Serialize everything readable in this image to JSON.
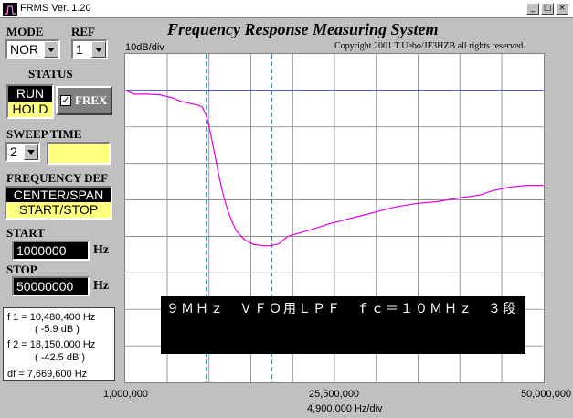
{
  "window": {
    "title": "FRMS Ver. 1.20"
  },
  "controls": {
    "mode_label": "MODE",
    "mode_value": "NOR",
    "ref_label": "REF",
    "ref_value": "1",
    "status_label": "STATUS",
    "run_label": "RUN",
    "hold_label": "HOLD",
    "frex_label": "FREX",
    "frex_checked": true,
    "sweep_time_label": "SWEEP TIME",
    "sweep_time_value": "2",
    "freq_def_label": "FREQUENCY DEF",
    "center_span_label": "CENTER/SPAN",
    "start_stop_label": "START/STOP",
    "start_label": "START",
    "start_value": "1000000",
    "stop_label": "STOP",
    "stop_value": "50000000",
    "hz_unit": "Hz"
  },
  "markers": {
    "f1_line": "f 1 = 10,480,400 Hz",
    "f1_db": "( -5.9 dB )",
    "f2_line": "f 2 = 18,150,000 Hz",
    "f2_db": "( -42.5 dB )",
    "df_line": "df = 7,669,600 Hz"
  },
  "graph": {
    "title": "Frequency Response Measuring System",
    "copyright": "Copyright 2001 T.Uebo/JF3HZB all rights reserved.",
    "ydiv": "10dB/div",
    "xdiv": "4,900,000 Hz/div",
    "x_tick_labels": [
      "1,000,000",
      "25,500,000",
      "50,000,000"
    ],
    "overlay_text": "９ＭＨｚ　ＶＦＯ用ＬＰＦ　ｆｃ＝１０ＭＨｚ　３段"
  },
  "colors": {
    "trace": "#e000e0",
    "reference": "#0000a0",
    "marker": "#00a0e0",
    "grid": "#808080"
  },
  "chart_data": {
    "type": "line",
    "xlim": [
      1000000,
      50000000
    ],
    "ylim": [
      -80,
      10
    ],
    "grid": true,
    "reference_level_db": 0,
    "markers_hz": [
      10480400,
      18150000
    ],
    "series": [
      {
        "x": [
          1000000,
          2000000,
          3500000,
          5000000,
          6500000,
          7500000,
          8500000,
          9500000,
          10000000,
          10500000,
          11000000,
          11500000,
          12000000,
          12500000,
          13000000,
          13500000,
          14000000,
          15000000,
          16000000,
          17000000,
          18000000,
          19000000,
          20000000,
          21500000,
          23000000,
          25000000,
          27500000,
          30000000,
          32500000,
          35000000,
          37500000,
          40000000,
          42500000,
          44000000,
          46000000,
          48000000,
          50000000
        ],
        "y": [
          0,
          -1,
          -1,
          -1.2,
          -2,
          -3,
          -3.5,
          -4,
          -4.5,
          -7,
          -12,
          -18,
          -24,
          -29,
          -33,
          -36,
          -38.5,
          -41,
          -42.2,
          -42.5,
          -42.6,
          -42,
          -40,
          -39,
          -38,
          -36.5,
          -35,
          -33.5,
          -32,
          -31,
          -30.5,
          -29.5,
          -28.7,
          -27.5,
          -26.5,
          -26,
          -26
        ]
      }
    ]
  }
}
